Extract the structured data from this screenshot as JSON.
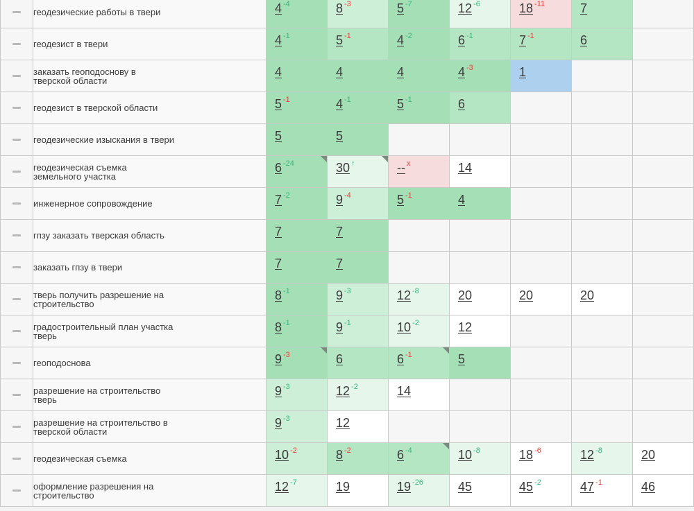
{
  "rows": [
    {
      "keyword": [
        "геодезические работы в твери"
      ],
      "cells": [
        {
          "value": "4",
          "delta": "-4",
          "dir": "up",
          "color": "dark"
        },
        {
          "value": "8",
          "delta": "-3",
          "dir": "down",
          "color": "light"
        },
        {
          "value": "5",
          "delta": "-7",
          "dir": "up",
          "color": "dark"
        },
        {
          "value": "12",
          "delta": "-6",
          "dir": "up",
          "color": "pale"
        },
        {
          "value": "18",
          "delta": "-11",
          "dir": "down",
          "color": "red"
        },
        {
          "value": "7",
          "color": "mid"
        },
        {
          "value": "",
          "color": "empty"
        }
      ]
    },
    {
      "keyword": [
        "геодезист в твери"
      ],
      "cells": [
        {
          "value": "4",
          "delta": "-1",
          "dir": "up",
          "color": "dark"
        },
        {
          "value": "5",
          "delta": "-1",
          "dir": "down",
          "color": "mid"
        },
        {
          "value": "4",
          "delta": "-2",
          "dir": "up",
          "color": "dark"
        },
        {
          "value": "6",
          "delta": "-1",
          "dir": "up",
          "color": "mid"
        },
        {
          "value": "7",
          "delta": "-1",
          "dir": "down",
          "color": "mid"
        },
        {
          "value": "6",
          "color": "mid"
        },
        {
          "value": "",
          "color": "empty"
        }
      ]
    },
    {
      "keyword": [
        "заказать геоподоснову в",
        "тверской области"
      ],
      "cells": [
        {
          "value": "4",
          "color": "dark"
        },
        {
          "value": "4",
          "color": "dark"
        },
        {
          "value": "4",
          "color": "dark"
        },
        {
          "value": "4",
          "delta": "-3",
          "dir": "down",
          "color": "dark"
        },
        {
          "value": "1",
          "color": "blue"
        },
        {
          "value": "",
          "color": "empty"
        },
        {
          "value": "",
          "color": "empty"
        }
      ]
    },
    {
      "keyword": [
        "геодезист в тверской области"
      ],
      "cells": [
        {
          "value": "5",
          "delta": "-1",
          "dir": "down",
          "color": "dark"
        },
        {
          "value": "4",
          "delta": "-1",
          "dir": "up",
          "color": "dark"
        },
        {
          "value": "5",
          "delta": "-1",
          "dir": "up",
          "color": "dark"
        },
        {
          "value": "6",
          "color": "mid"
        },
        {
          "value": "",
          "color": "empty"
        },
        {
          "value": "",
          "color": "empty"
        },
        {
          "value": "",
          "color": "empty"
        }
      ]
    },
    {
      "keyword": [
        "геодезические изыскания в твери"
      ],
      "cells": [
        {
          "value": "5",
          "color": "dark"
        },
        {
          "value": "5",
          "color": "dark"
        },
        {
          "value": "",
          "color": "empty"
        },
        {
          "value": "",
          "color": "empty"
        },
        {
          "value": "",
          "color": "empty"
        },
        {
          "value": "",
          "color": "empty"
        },
        {
          "value": "",
          "color": "empty"
        }
      ]
    },
    {
      "keyword": [
        "геодезическая съемка",
        "земельного участка"
      ],
      "cells": [
        {
          "value": "6",
          "delta": "-24",
          "dir": "up",
          "color": "dark",
          "corner": true
        },
        {
          "value": "30",
          "delta": "↑",
          "dir": "up",
          "color": "pale",
          "corner": true
        },
        {
          "value": "--",
          "delta": "x",
          "dir": "down",
          "color": "red"
        },
        {
          "value": "14",
          "color": "white"
        },
        {
          "value": "",
          "color": "empty"
        },
        {
          "value": "",
          "color": "empty"
        },
        {
          "value": "",
          "color": "empty"
        }
      ]
    },
    {
      "keyword": [
        "инженерное сопровождение"
      ],
      "cells": [
        {
          "value": "7",
          "delta": "-2",
          "dir": "up",
          "color": "dark"
        },
        {
          "value": "9",
          "delta": "-4",
          "dir": "down",
          "color": "light"
        },
        {
          "value": "5",
          "delta": "-1",
          "dir": "down",
          "color": "dark"
        },
        {
          "value": "4",
          "color": "dark"
        },
        {
          "value": "",
          "color": "empty"
        },
        {
          "value": "",
          "color": "empty"
        },
        {
          "value": "",
          "color": "empty"
        }
      ]
    },
    {
      "keyword": [
        "гпзу заказать тверская область"
      ],
      "cells": [
        {
          "value": "7",
          "color": "dark"
        },
        {
          "value": "7",
          "color": "dark"
        },
        {
          "value": "",
          "color": "empty"
        },
        {
          "value": "",
          "color": "empty"
        },
        {
          "value": "",
          "color": "empty"
        },
        {
          "value": "",
          "color": "empty"
        },
        {
          "value": "",
          "color": "empty"
        }
      ]
    },
    {
      "keyword": [
        "заказать гпзу в твери"
      ],
      "cells": [
        {
          "value": "7",
          "color": "dark"
        },
        {
          "value": "7",
          "color": "dark"
        },
        {
          "value": "",
          "color": "empty"
        },
        {
          "value": "",
          "color": "empty"
        },
        {
          "value": "",
          "color": "empty"
        },
        {
          "value": "",
          "color": "empty"
        },
        {
          "value": "",
          "color": "empty"
        }
      ]
    },
    {
      "keyword": [
        "тверь получить разрешение на",
        "строительство"
      ],
      "cells": [
        {
          "value": "8",
          "delta": "-1",
          "dir": "up",
          "color": "dark"
        },
        {
          "value": "9",
          "delta": "-3",
          "dir": "up",
          "color": "light"
        },
        {
          "value": "12",
          "delta": "-8",
          "dir": "up",
          "color": "pale"
        },
        {
          "value": "20",
          "color": "white"
        },
        {
          "value": "20",
          "color": "white"
        },
        {
          "value": "20",
          "color": "white"
        },
        {
          "value": "",
          "color": "empty"
        }
      ]
    },
    {
      "keyword": [
        "градостроительный план участка",
        "тверь"
      ],
      "cells": [
        {
          "value": "8",
          "delta": "-1",
          "dir": "up",
          "color": "dark"
        },
        {
          "value": "9",
          "delta": "-1",
          "dir": "up",
          "color": "light"
        },
        {
          "value": "10",
          "delta": "-2",
          "dir": "up",
          "color": "pale"
        },
        {
          "value": "12",
          "color": "white"
        },
        {
          "value": "",
          "color": "empty"
        },
        {
          "value": "",
          "color": "empty"
        },
        {
          "value": "",
          "color": "empty"
        }
      ]
    },
    {
      "keyword": [
        "геоподоснова"
      ],
      "cells": [
        {
          "value": "9",
          "delta": "-3",
          "dir": "down",
          "color": "dark",
          "corner": true
        },
        {
          "value": "6",
          "color": "mid"
        },
        {
          "value": "6",
          "delta": "-1",
          "dir": "down",
          "color": "mid",
          "corner": true
        },
        {
          "value": "5",
          "color": "dark"
        },
        {
          "value": "",
          "color": "empty"
        },
        {
          "value": "",
          "color": "empty"
        },
        {
          "value": "",
          "color": "empty"
        }
      ]
    },
    {
      "keyword": [
        "разрешение на строительство",
        "тверь"
      ],
      "cells": [
        {
          "value": "9",
          "delta": "-3",
          "dir": "up",
          "color": "light"
        },
        {
          "value": "12",
          "delta": "-2",
          "dir": "up",
          "color": "pale"
        },
        {
          "value": "14",
          "color": "white"
        },
        {
          "value": "",
          "color": "empty"
        },
        {
          "value": "",
          "color": "empty"
        },
        {
          "value": "",
          "color": "empty"
        },
        {
          "value": "",
          "color": "empty"
        }
      ]
    },
    {
      "keyword": [
        "разрешение на строительство в",
        "тверской области"
      ],
      "cells": [
        {
          "value": "9",
          "delta": "-3",
          "dir": "up",
          "color": "light"
        },
        {
          "value": "12",
          "color": "white"
        },
        {
          "value": "",
          "color": "empty"
        },
        {
          "value": "",
          "color": "empty"
        },
        {
          "value": "",
          "color": "empty"
        },
        {
          "value": "",
          "color": "empty"
        },
        {
          "value": "",
          "color": "empty"
        }
      ]
    },
    {
      "keyword": [
        "геодезическая съемка"
      ],
      "cells": [
        {
          "value": "10",
          "delta": "-2",
          "dir": "down",
          "color": "light"
        },
        {
          "value": "8",
          "delta": "-2",
          "dir": "down",
          "color": "mid"
        },
        {
          "value": "6",
          "delta": "-4",
          "dir": "up",
          "color": "mid",
          "corner": true
        },
        {
          "value": "10",
          "delta": "-8",
          "dir": "up",
          "color": "pale"
        },
        {
          "value": "18",
          "delta": "-6",
          "dir": "down",
          "color": "white"
        },
        {
          "value": "12",
          "delta": "-8",
          "dir": "up",
          "color": "pale"
        },
        {
          "value": "20",
          "color": "white"
        }
      ]
    },
    {
      "keyword": [
        "оформление разрешения на",
        "строительство"
      ],
      "cells": [
        {
          "value": "12",
          "delta": "-7",
          "dir": "up",
          "color": "pale"
        },
        {
          "value": "19",
          "color": "white"
        },
        {
          "value": "19",
          "delta": "-26",
          "dir": "up",
          "color": "pale"
        },
        {
          "value": "45",
          "color": "white"
        },
        {
          "value": "45",
          "delta": "-2",
          "dir": "up",
          "color": "white"
        },
        {
          "value": "47",
          "delta": "-1",
          "dir": "down",
          "color": "white"
        },
        {
          "value": "46",
          "color": "white"
        }
      ]
    }
  ]
}
